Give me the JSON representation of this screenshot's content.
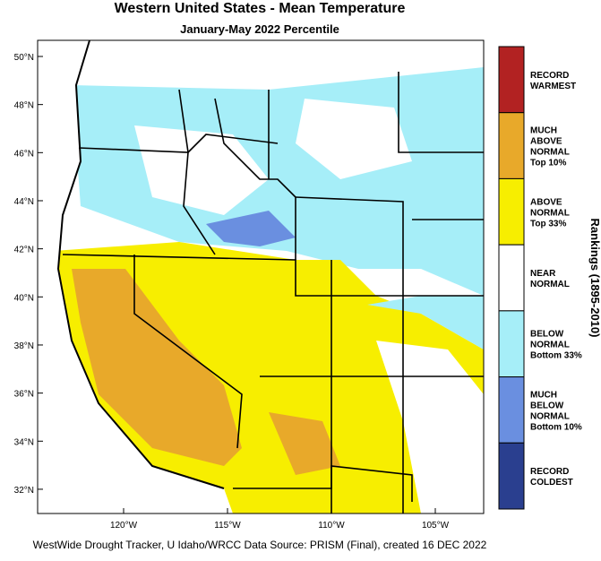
{
  "header": {
    "title": "Western United States - Mean Temperature",
    "subtitle": "January-May 2022 Percentile"
  },
  "map": {
    "lat_ticks": [
      {
        "value": 50,
        "label": "50°N"
      },
      {
        "value": 48,
        "label": "48°N"
      },
      {
        "value": 46,
        "label": "46°N"
      },
      {
        "value": 44,
        "label": "44°N"
      },
      {
        "value": 42,
        "label": "42°N"
      },
      {
        "value": 40,
        "label": "40°N"
      },
      {
        "value": 38,
        "label": "38°N"
      },
      {
        "value": 36,
        "label": "36°N"
      },
      {
        "value": 34,
        "label": "34°N"
      },
      {
        "value": 32,
        "label": "32°N"
      }
    ],
    "lon_ticks": [
      {
        "value": -120,
        "label": "120°W"
      },
      {
        "value": -115,
        "label": "115°W"
      },
      {
        "value": -110,
        "label": "110°W"
      },
      {
        "value": -105,
        "label": "105°W"
      }
    ]
  },
  "legend": {
    "title": "Rankings (1895-2010)",
    "items": [
      {
        "lines": [
          "RECORD",
          "WARMEST"
        ],
        "color": "#b22222"
      },
      {
        "lines": [
          "MUCH",
          "ABOVE",
          "NORMAL",
          "Top 10%"
        ],
        "color": "#e8a92a"
      },
      {
        "lines": [
          "ABOVE",
          "NORMAL",
          "Top 33%"
        ],
        "color": "#f7ee00"
      },
      {
        "lines": [
          "NEAR",
          "NORMAL"
        ],
        "color": "#ffffff"
      },
      {
        "lines": [
          "BELOW",
          "NORMAL",
          "Bottom 33%"
        ],
        "color": "#a6eef8"
      },
      {
        "lines": [
          "MUCH",
          "BELOW",
          "NORMAL",
          "Bottom 10%"
        ],
        "color": "#6a8fe0"
      },
      {
        "lines": [
          "RECORD",
          "COLDEST"
        ],
        "color": "#2a3f8f"
      }
    ]
  },
  "footer": "WestWide Drought Tracker, U Idaho/WRCC Data Source: PRISM (Final), created 16 DEC 2022"
}
